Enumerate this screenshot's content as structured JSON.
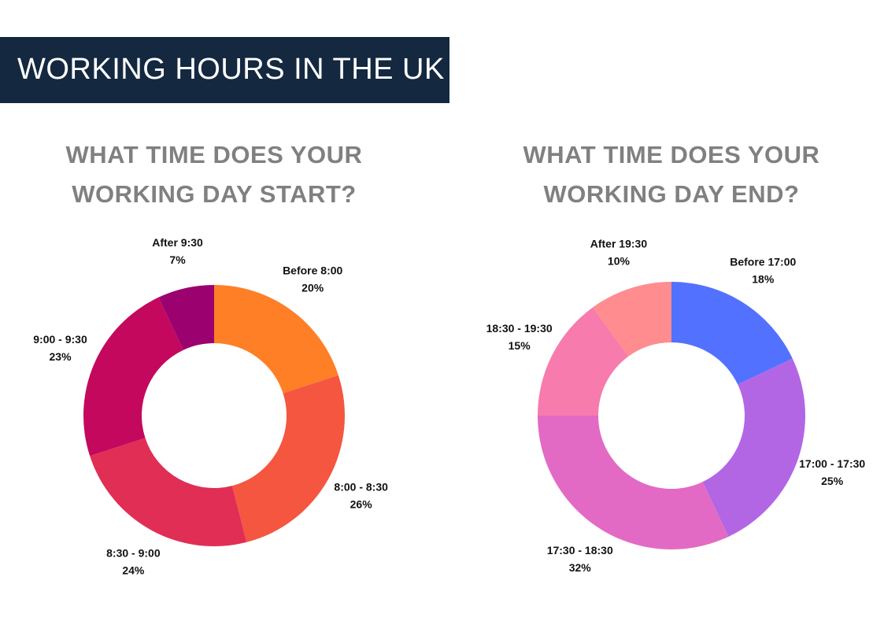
{
  "title": "WORKING HOURS IN THE UK",
  "chart_data": [
    {
      "type": "donut",
      "title": "WHAT TIME DOES YOUR WORKING DAY START?",
      "categories": [
        "Before 8:00",
        "8:00 - 8:30",
        "8:30 - 9:00",
        "9:00 - 9:30",
        "After 9:30"
      ],
      "values": [
        20,
        26,
        24,
        23,
        7
      ],
      "value_labels": [
        "20%",
        "26%",
        "24%",
        "23%",
        "7%"
      ],
      "colors": [
        "#ff7f27",
        "#f55640",
        "#e12e55",
        "#c4085e",
        "#9b0270"
      ]
    },
    {
      "type": "donut",
      "title": "WHAT TIME DOES YOUR WORKING DAY END?",
      "categories": [
        "Before 17:00",
        "17:00 - 17:30",
        "17:30 - 18:30",
        "18:30 - 19:30",
        "After 19:30"
      ],
      "values": [
        18,
        25,
        32,
        15,
        10
      ],
      "value_labels": [
        "18%",
        "25%",
        "32%",
        "15%",
        "10%"
      ],
      "colors": [
        "#5271ff",
        "#b366e3",
        "#e26ac4",
        "#f77bac",
        "#ff8c8f"
      ]
    }
  ]
}
